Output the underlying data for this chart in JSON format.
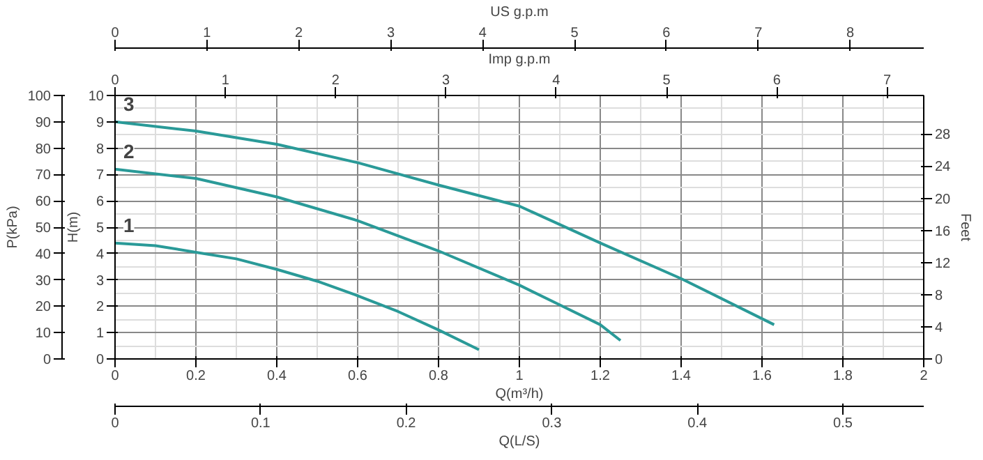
{
  "chart_data": {
    "type": "line",
    "xlabel": "Q(m³/h)",
    "ylabel": "H(m)",
    "y2label": "P(kPa)",
    "y3label": "Feet",
    "x2label": "US g.p.m",
    "xlim": [
      0,
      2
    ],
    "xticks": [
      0,
      0.2,
      0.4,
      0.6,
      0.8,
      1,
      1.2,
      1.4,
      1.6,
      1.8,
      2
    ],
    "ylim": [
      0,
      10
    ],
    "yticks": [
      0,
      1,
      2,
      3,
      4,
      5,
      6,
      7,
      8,
      9,
      10
    ],
    "y2lim": [
      0,
      100
    ],
    "y2ticks": [
      0,
      10,
      20,
      30,
      40,
      50,
      60,
      70,
      80,
      90,
      100
    ],
    "y3lim": [
      0,
      32.8
    ],
    "y3ticks": [
      0,
      4,
      8,
      12,
      16,
      20,
      24,
      28
    ],
    "x2lim": [
      0,
      8.8
    ],
    "x2ticks": [
      0,
      1,
      2,
      3,
      4,
      5,
      6,
      7,
      8
    ],
    "annotations": [
      "Imp g.p.m",
      "0",
      "1",
      "2",
      "3",
      "4",
      "5",
      "6",
      "7",
      "Q(L/S)",
      "0",
      "0.1",
      "0.2",
      "0.3",
      "0.4",
      "0.5"
    ],
    "grid": true,
    "marker": "none",
    "line_style": "solid",
    "series": [
      {
        "name": "1",
        "color": "#2a9a98",
        "x": [
          0,
          0.1,
          0.2,
          0.3,
          0.4,
          0.5,
          0.6,
          0.7,
          0.8,
          0.9
        ],
        "values": [
          4.4,
          4.3,
          4.05,
          3.8,
          3.4,
          2.95,
          2.4,
          1.8,
          1.1,
          0.35
        ]
      },
      {
        "name": "2",
        "color": "#2a9a98",
        "x": [
          0,
          0.2,
          0.4,
          0.6,
          0.8,
          1.0,
          1.1,
          1.2,
          1.25
        ],
        "values": [
          7.2,
          6.85,
          6.15,
          5.25,
          4.1,
          2.8,
          2.05,
          1.3,
          0.7
        ]
      },
      {
        "name": "3",
        "color": "#2a9a98",
        "x": [
          0,
          0.2,
          0.4,
          0.6,
          0.8,
          1.0,
          1.2,
          1.4,
          1.63
        ],
        "values": [
          9.0,
          8.65,
          8.15,
          7.45,
          6.6,
          5.8,
          4.4,
          3.05,
          1.3
        ]
      }
    ]
  }
}
